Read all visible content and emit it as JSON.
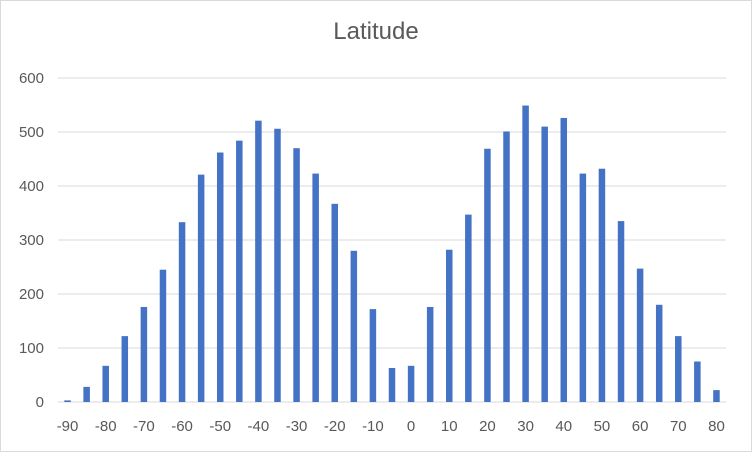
{
  "chart_data": {
    "type": "bar",
    "title": "Latitude",
    "xlabel": "",
    "ylabel": "",
    "ylim": [
      0,
      600
    ],
    "yticks": [
      0,
      100,
      200,
      300,
      400,
      500,
      600
    ],
    "xtick_labels": [
      "-90",
      "-80",
      "-70",
      "-60",
      "-50",
      "-40",
      "-30",
      "-20",
      "-10",
      "0",
      "10",
      "20",
      "30",
      "40",
      "50",
      "60",
      "70",
      "80"
    ],
    "categories": [
      -90,
      -85,
      -80,
      -75,
      -70,
      -65,
      -60,
      -55,
      -50,
      -45,
      -40,
      -35,
      -30,
      -25,
      -20,
      -15,
      -10,
      -5,
      0,
      5,
      10,
      15,
      20,
      25,
      30,
      35,
      40,
      45,
      50,
      55,
      60,
      65,
      70,
      75,
      80
    ],
    "values": [
      3,
      28,
      67,
      122,
      176,
      245,
      333,
      421,
      462,
      484,
      521,
      506,
      470,
      423,
      367,
      280,
      172,
      63,
      67,
      176,
      282,
      347,
      469,
      501,
      549,
      510,
      526,
      423,
      432,
      335,
      247,
      180,
      122,
      75,
      22
    ],
    "grid": true,
    "legend": "none",
    "bar_color": "#4472c4"
  }
}
